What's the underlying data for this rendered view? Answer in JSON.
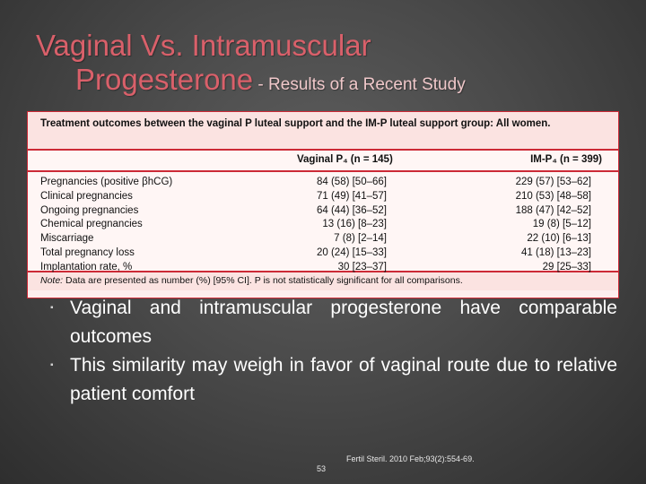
{
  "title": {
    "line1": "Vaginal Vs. Intramuscular",
    "line2": "Progesterone",
    "subtitle": " - Results of a Recent Study"
  },
  "table": {
    "caption": "Treatment outcomes between the vaginal P luteal support and the IM-P luteal support group: All women.",
    "col1_header": "Vaginal P₄ (n = 145)",
    "col2_header": "IM-P₄ (n = 399)",
    "rows": [
      {
        "label": "Pregnancies (positive βhCG)",
        "vaginal": "84 (58) [50–66]",
        "im": "229 (57) [53–62]"
      },
      {
        "label": "Clinical pregnancies",
        "vaginal": "71 (49) [41–57]",
        "im": "210 (53) [48–58]"
      },
      {
        "label": "Ongoing pregnancies",
        "vaginal": "64 (44) [36–52]",
        "im": "188 (47) [42–52]"
      },
      {
        "label": "Chemical pregnancies",
        "vaginal": "13 (16) [8–23]",
        "im": "19 (8) [5–12]"
      },
      {
        "label": "Miscarriage",
        "vaginal": "7 (8) [2–14]",
        "im": "22 (10) [6–13]"
      },
      {
        "label": "Total pregnancy loss",
        "vaginal": "20 (24) [15–33]",
        "im": "41 (18) [13–23]"
      },
      {
        "label": "Implantation rate, %",
        "vaginal": "30 [23–37]",
        "im": "29 [25–33]"
      }
    ],
    "note_label": "Note:",
    "note_text": " Data are presented as number (%) [95% CI]. P is not statistically significant for all comparisons."
  },
  "bullets": [
    "Vaginal and intramuscular progesterone have comparable outcomes",
    "This similarity may weigh in favor of vaginal route due to relative patient comfort"
  ],
  "footer": {
    "slide_number": "53",
    "reference": "Fertil Steril. 2010 Feb;93(2):554-69."
  },
  "colors": {
    "title": "#d9606a",
    "table_border": "#cc2a36",
    "table_bg": "#fdeeee"
  }
}
